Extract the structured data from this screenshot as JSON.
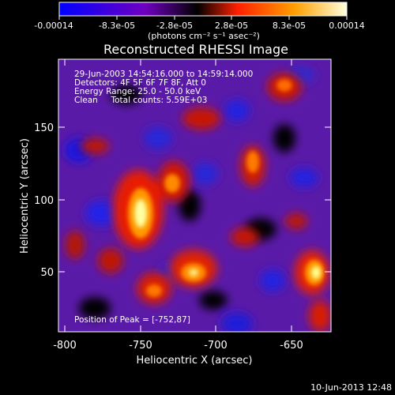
{
  "colorbar": {
    "tick_labels": [
      "-0.00014",
      "-8.3e-05",
      "-2.8e-05",
      "2.8e-05",
      "8.3e-05",
      "0.00014"
    ],
    "unit_label": "(photons cm⁻² s⁻¹ asec⁻²)",
    "colormap": [
      "#0000ff",
      "#7a00c8",
      "#000000",
      "#ff2d00",
      "#ff9a00",
      "#ffffd8"
    ]
  },
  "title": "Reconstructed RHESSI Image",
  "info": {
    "line1": "29-Jun-2003 14:54:16.000 to 14:59:14.000",
    "line2": "Detectors: 4F 5F 6F 7F 8F, Att 0",
    "line3": "Energy Range: 25.0 - 50.0 keV",
    "line4": "Clean     Total counts: 5.59E+03"
  },
  "peak_label": "Position of Peak = [-752,87]",
  "x_axis": {
    "label": "Heliocentric X (arcsec)",
    "ticks": [
      "-800",
      "-750",
      "-700",
      "-650"
    ],
    "range": [
      -810,
      -608
    ]
  },
  "y_axis": {
    "label": "Heliocentric Y (arcsec)",
    "ticks": [
      "50",
      "100",
      "150"
    ],
    "range": [
      5,
      206
    ]
  },
  "timestamp": "10-Jun-2013 12:48"
}
